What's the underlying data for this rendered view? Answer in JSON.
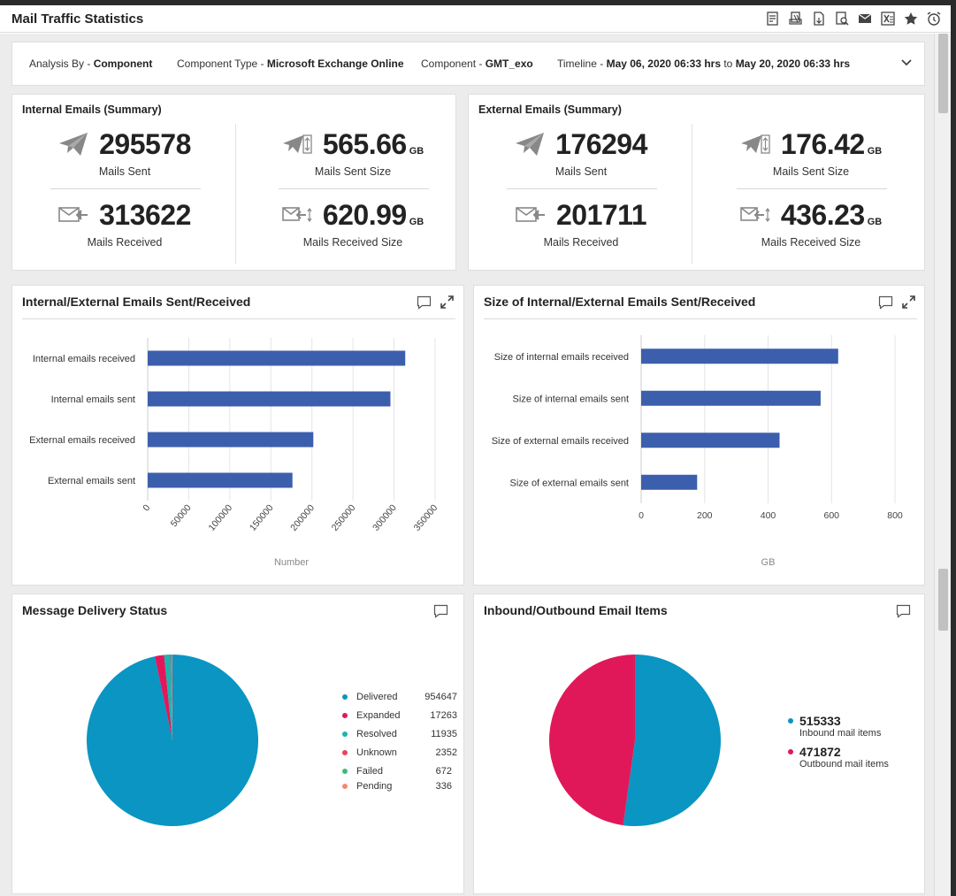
{
  "window": {
    "title": "Mail Traffic Statistics"
  },
  "toolbar": {
    "icons": [
      "pdf-export-icon",
      "print-icon",
      "csv-export-icon",
      "search-report-icon",
      "email-icon",
      "excel-icon",
      "favorite-star-icon",
      "schedule-alarm-icon"
    ]
  },
  "filter": {
    "analysis_label": "Analysis By - ",
    "analysis_value": "Component",
    "type_label": "Component Type - ",
    "type_value": "Microsoft Exchange Online",
    "component_label": "Component - ",
    "component_value": "GMT_exo",
    "timeline_label": "Timeline - ",
    "timeline_from": "May 06, 2020 06:33 hrs",
    "timeline_to_word": " to ",
    "timeline_to": "May 20, 2020 06:33 hrs"
  },
  "internal_summary": {
    "title": "Internal Emails (Summary)",
    "sent": "295578",
    "sent_label": "Mails Sent",
    "sent_size": "565.66",
    "sent_size_unit": "GB",
    "sent_size_label": "Mails Sent Size",
    "received": "313622",
    "received_label": "Mails Received",
    "received_size": "620.99",
    "received_size_unit": "GB",
    "received_size_label": "Mails Received Size"
  },
  "external_summary": {
    "title": "External Emails (Summary)",
    "sent": "176294",
    "sent_label": "Mails Sent",
    "sent_size": "176.42",
    "sent_size_unit": "GB",
    "sent_size_label": "Mails Sent Size",
    "received": "201711",
    "received_label": "Mails Received",
    "received_size": "436.23",
    "received_size_unit": "GB",
    "received_size_label": "Mails Received Size"
  },
  "chart_data": [
    {
      "type": "bar",
      "orientation": "horizontal",
      "title": "Internal/External Emails Sent/Received",
      "categories": [
        "Internal emails received",
        "Internal emails sent",
        "External emails received",
        "External emails sent"
      ],
      "values": [
        313622,
        295578,
        201711,
        176294
      ],
      "xlabel": "Number",
      "xticks": [
        "0",
        "50000",
        "100000",
        "150000",
        "200000",
        "250000",
        "300000",
        "350000"
      ],
      "xlim": [
        0,
        350000
      ],
      "color": "#3c5fad",
      "grid": true
    },
    {
      "type": "bar",
      "orientation": "horizontal",
      "title": "Size of Internal/External Emails Sent/Received",
      "categories": [
        "Size of internal emails received",
        "Size of internal emails sent",
        "Size of external emails received",
        "Size of external emails sent"
      ],
      "values": [
        620.99,
        565.66,
        436.23,
        176.42
      ],
      "xlabel": "GB",
      "xticks": [
        "0",
        "200",
        "400",
        "600",
        "800"
      ],
      "xlim": [
        0,
        800
      ],
      "color": "#3c5fad",
      "grid": true
    },
    {
      "type": "pie",
      "title": "Message Delivery Status",
      "labels": [
        "Delivered",
        "Expanded",
        "Resolved",
        "Unknown",
        "Failed",
        "Pending"
      ],
      "values": [
        954647,
        17263,
        11935,
        2352,
        672,
        336
      ],
      "display_values": [
        "954647",
        "17263",
        "11935",
        "2352",
        "672",
        "336"
      ],
      "colors": [
        "#0a95c3",
        "#e0185a",
        "#1bb4b0",
        "#e8455a",
        "#3dbb78",
        "#f28a70"
      ],
      "legend": "right"
    },
    {
      "type": "pie",
      "title": "Inbound/Outbound Email Items",
      "labels": [
        "Inbound mail items",
        "Outbound mail items"
      ],
      "values": [
        515333,
        471872
      ],
      "display_values": [
        "515333",
        "471872"
      ],
      "colors": [
        "#0a95c3",
        "#e0185a"
      ],
      "legend": "right"
    }
  ]
}
